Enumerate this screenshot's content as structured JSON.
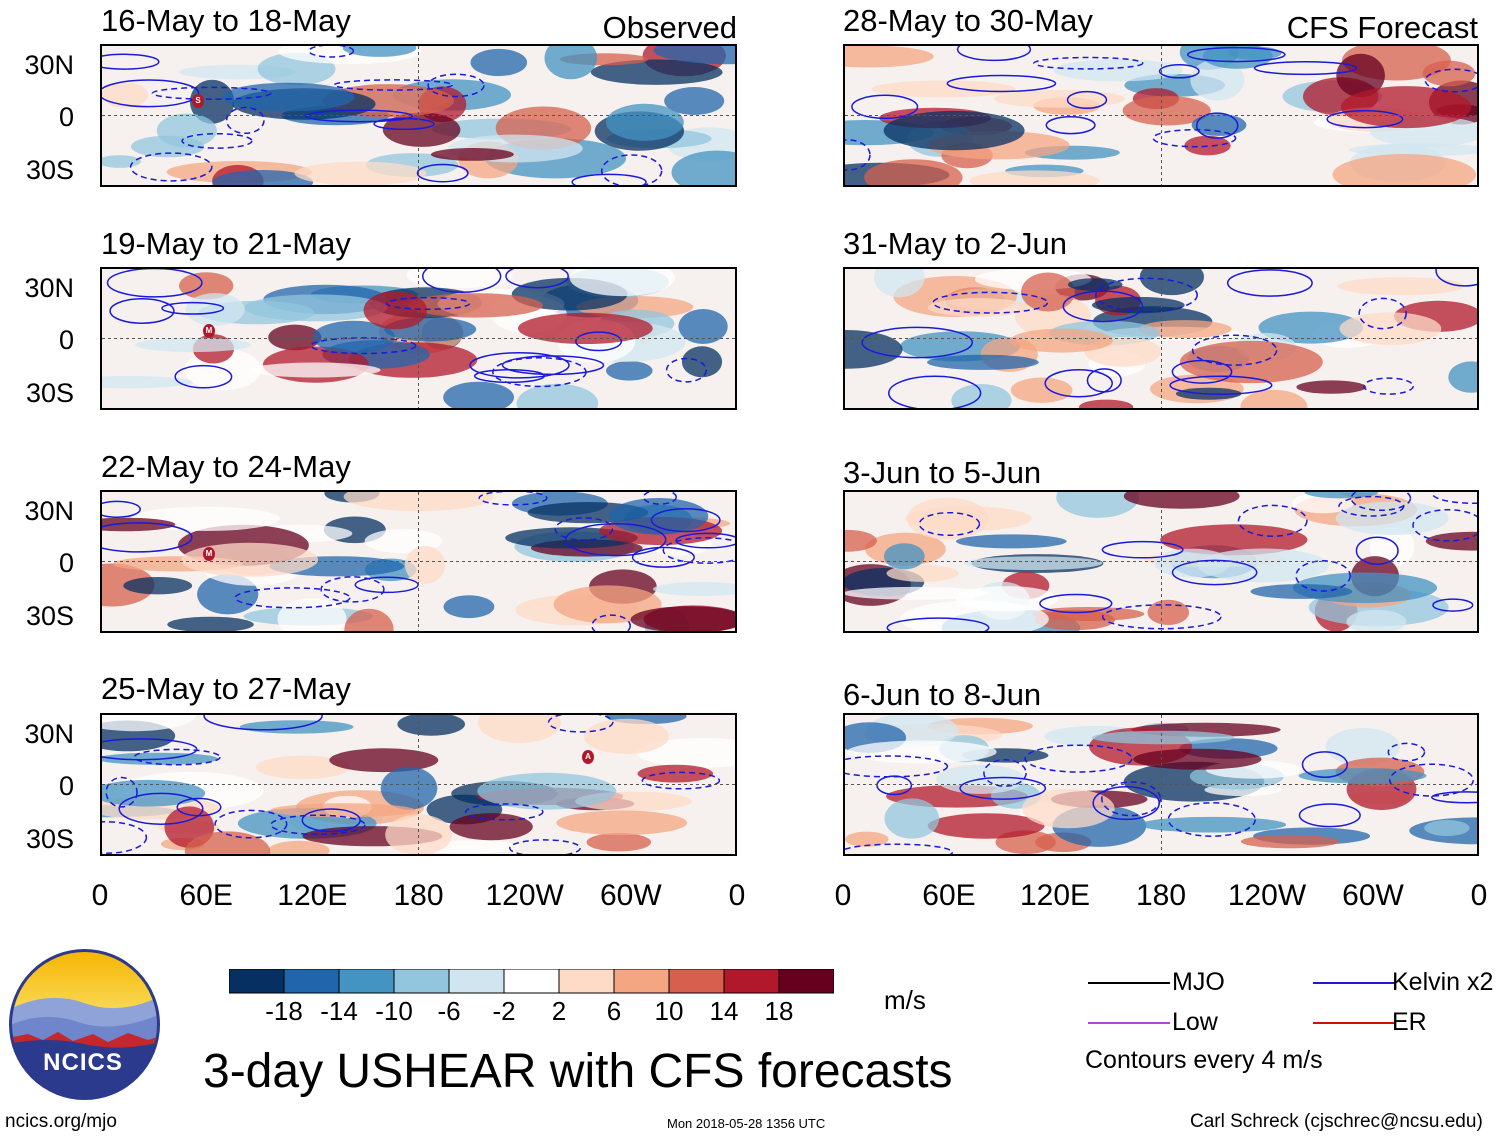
{
  "header": {
    "observed_label": "Observed",
    "forecast_label": "CFS Forecast"
  },
  "observed_panels": [
    {
      "title": "16-May to 18-May",
      "storm_marker": "S"
    },
    {
      "title": "19-May to 21-May",
      "storm_marker": "M"
    },
    {
      "title": "22-May to 24-May",
      "storm_marker": "M"
    },
    {
      "title": "25-May to 27-May",
      "storm_marker": "A"
    }
  ],
  "forecast_panels": [
    {
      "title": "28-May to 30-May"
    },
    {
      "title": "31-May to 2-Jun"
    },
    {
      "title": "3-Jun to 5-Jun"
    },
    {
      "title": "6-Jun to 8-Jun"
    }
  ],
  "lat_labels": [
    "30N",
    "0",
    "30S"
  ],
  "lon_labels": [
    "0",
    "60E",
    "120E",
    "180",
    "120W",
    "60W",
    "0"
  ],
  "colorbar": {
    "unit": "m/s",
    "tick_labels": [
      "-18",
      "-14",
      "-10",
      "-6",
      "-2",
      "2",
      "6",
      "10",
      "14",
      "18"
    ],
    "colors": [
      "#053061",
      "#2166ac",
      "#4393c3",
      "#92c5de",
      "#d1e5f0",
      "#ffffff",
      "#fddbc7",
      "#f4a582",
      "#d6604d",
      "#b2182b",
      "#67001f"
    ]
  },
  "legend": {
    "items": [
      {
        "label": "MJO",
        "color": "#000000"
      },
      {
        "label": "Kelvin x2",
        "color": "#1a1adb"
      },
      {
        "label": "Low",
        "color": "#a64dd1"
      },
      {
        "label": "ER",
        "color": "#d01010"
      }
    ],
    "contour_note": "Contours every 4 m/s"
  },
  "logo": {
    "text": "NCICS"
  },
  "main_title": "3-day USHEAR with CFS forecasts",
  "footer": {
    "url": "ncics.org/mjo",
    "timestamp": "Mon 2018-05-28 1356 UTC",
    "credit": "Carl Schreck (cjschrec@ncsu.edu)"
  }
}
